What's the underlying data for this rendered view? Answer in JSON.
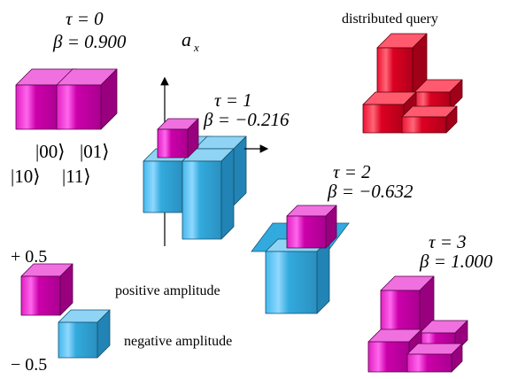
{
  "colors": {
    "positive": "#cc00aa",
    "negative": "#33aadd",
    "query": "#dd0022"
  },
  "panels": [
    {
      "tau": "τ = 0",
      "beta": "β = 0.900"
    },
    {
      "tau": "τ = 1",
      "beta": "β = −0.216"
    },
    {
      "tau": "τ = 2",
      "beta": "β = −0.632"
    },
    {
      "tau": "τ = 3",
      "beta": "β = 1.000"
    }
  ],
  "axis_label": "a",
  "axis_subscript": "x",
  "basis_states": [
    "|00⟩",
    "|01⟩",
    "|10⟩",
    "|11⟩"
  ],
  "query_label": "distributed query",
  "legend": {
    "plus_label": "+ 0.5",
    "minus_label": "− 0.5",
    "positive_label": "positive amplitude",
    "negative_label": "negative amplitude"
  }
}
